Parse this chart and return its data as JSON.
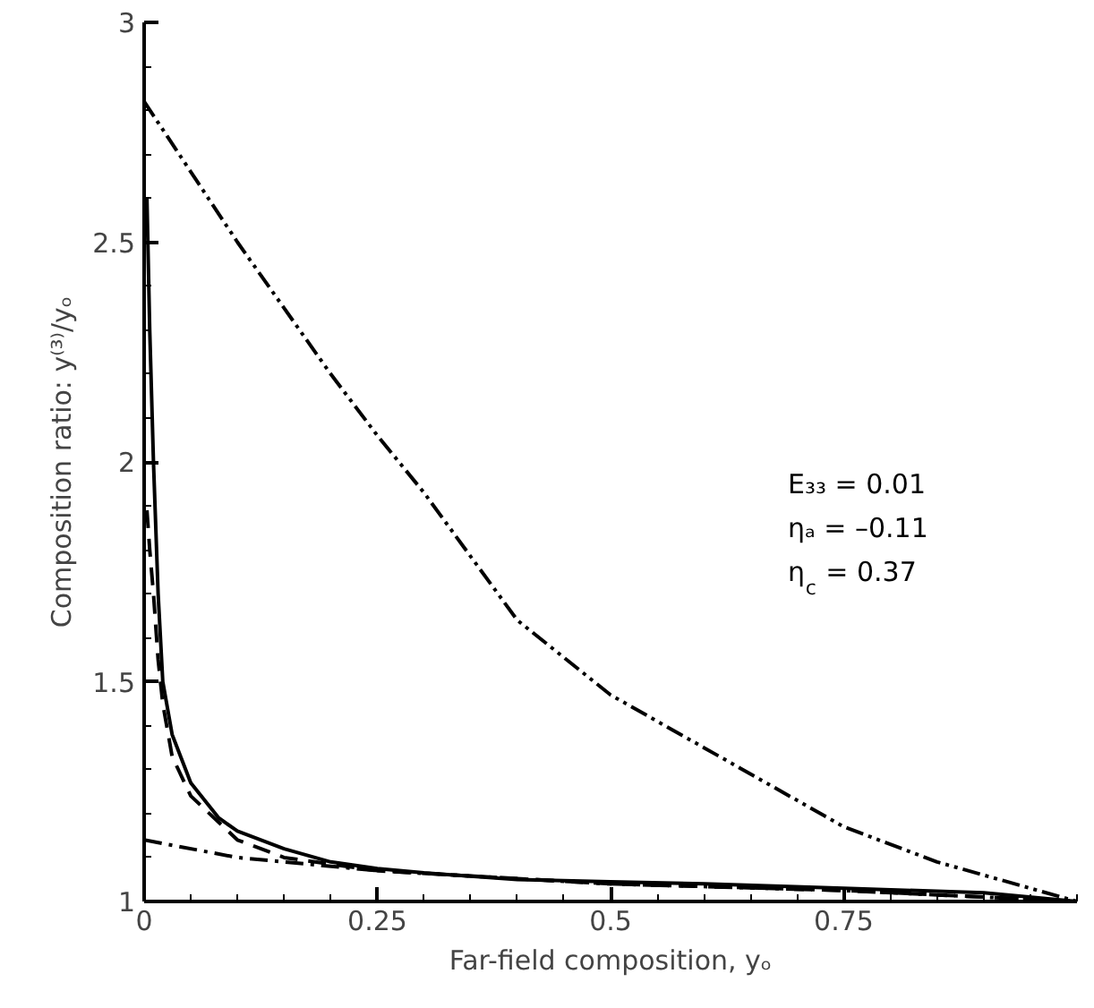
{
  "chart_data": {
    "type": "line",
    "xlabel": "Far-field composition, yₒ",
    "ylabel": "Composition ratio: y⁽³⁾/yₒ",
    "xlim": [
      0,
      1
    ],
    "ylim": [
      1,
      3
    ],
    "xticks": [
      0,
      0.25,
      0.5,
      0.75
    ],
    "yticks": [
      1,
      1.5,
      2,
      2.5,
      3
    ],
    "grid": false,
    "marker": "none",
    "annotations": [
      "E₃₃ = 0.01",
      "ηₐ = –0.11",
      "η$_{c}$ = 0.37"
    ],
    "series": [
      {
        "color": "#000000",
        "line_style": "solid",
        "x": [
          0.003,
          0.006,
          0.01,
          0.015,
          0.02,
          0.03,
          0.05,
          0.08,
          0.1,
          0.15,
          0.2,
          0.25,
          0.3,
          0.4,
          0.5,
          0.6,
          0.75,
          0.9,
          1.0
        ],
        "values": [
          2.6,
          2.3,
          2.0,
          1.7,
          1.5,
          1.38,
          1.27,
          1.19,
          1.16,
          1.12,
          1.09,
          1.075,
          1.065,
          1.05,
          1.045,
          1.04,
          1.03,
          1.02,
          1.0
        ]
      },
      {
        "color": "#000000",
        "line_style": "dashdotdot",
        "x": [
          0,
          0.1,
          0.2,
          0.25,
          0.3,
          0.4,
          0.5,
          0.6,
          0.7,
          0.75,
          0.85,
          0.95,
          1.0
        ],
        "values": [
          2.82,
          2.5,
          2.2,
          2.06,
          1.93,
          1.64,
          1.47,
          1.35,
          1.23,
          1.17,
          1.09,
          1.03,
          1.0
        ]
      },
      {
        "color": "#000000",
        "line_style": "dashdot",
        "x": [
          0,
          0.1,
          0.25,
          0.5,
          0.75,
          1.0
        ],
        "values": [
          1.14,
          1.1,
          1.07,
          1.04,
          1.025,
          1.0
        ]
      },
      {
        "color": "#000000",
        "line_style": "dashed",
        "x": [
          0.003,
          0.006,
          0.01,
          0.015,
          0.02,
          0.03,
          0.05,
          0.1,
          0.15,
          0.25,
          0.5,
          0.75,
          1.0
        ],
        "values": [
          1.89,
          1.8,
          1.7,
          1.55,
          1.45,
          1.33,
          1.24,
          1.14,
          1.1,
          1.07,
          1.04,
          1.025,
          1.0
        ]
      }
    ]
  }
}
